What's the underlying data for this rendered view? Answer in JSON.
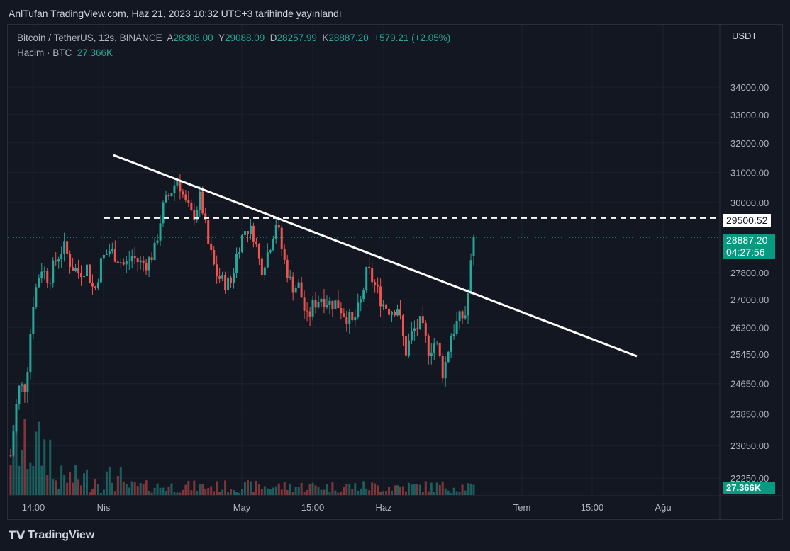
{
  "header": {
    "published": "AnlTufan TradingView.com, Haz 21, 2023 10:32 UTC+3 tarihinde yayınlandı"
  },
  "legend": {
    "symbol": "Bitcoin / TetherUS, 12s, BINANCE",
    "o_label": "A",
    "o": "28308.00",
    "h_label": "Y",
    "h": "29088.09",
    "l_label": "D",
    "l": "28257.99",
    "c_label": "K",
    "c": "28887.20",
    "change": "+579.21 (+2.05%)",
    "volume_label": "Hacim · BTC",
    "volume": "27.366K"
  },
  "colors": {
    "up": "#26a69a",
    "down": "#ef5350",
    "bg": "#131722",
    "grid": "#1e222d",
    "line": "#ffffff"
  },
  "footer": {
    "brand": "TradingView"
  },
  "chart_data": {
    "type": "candlestick",
    "currency": "USDT",
    "yticks": [
      34000,
      33000,
      32000,
      31000,
      30000,
      27800,
      27000,
      26200,
      25450,
      24650,
      23850,
      23050,
      22250
    ],
    "xticks": [
      "14:00",
      "Nis",
      "May",
      "15:00",
      "Haz",
      "Tem",
      "15:00",
      "Ağu"
    ],
    "closes_approx": [
      22800,
      24500,
      24600,
      27000,
      28000,
      27600,
      28200,
      28600,
      28000,
      27800,
      28000,
      27200,
      28200,
      28500,
      28300,
      28000,
      28300,
      28100,
      28100,
      28500,
      29800,
      30300,
      30800,
      30000,
      29500,
      30200,
      28700,
      27800,
      27500,
      27500,
      28600,
      29200,
      29000,
      27900,
      28500,
      29400,
      28200,
      27400,
      27400,
      26400,
      26900,
      27100,
      26900,
      26900,
      26600,
      26300,
      26800,
      27900,
      27400,
      26900,
      26700,
      26800,
      25500,
      26100,
      26300,
      25600,
      25800,
      24900,
      26000,
      26400,
      26600,
      28887.2
    ],
    "horizontal_level": {
      "price": 29500.52,
      "label": "29500.52",
      "style": "dashed"
    },
    "trendline": {
      "from_price": 31600,
      "to_price": 25550,
      "style": "solid"
    },
    "last_price": {
      "label": "28887.20",
      "countdown": "04:27:56"
    },
    "volume_last": "27.366K"
  }
}
